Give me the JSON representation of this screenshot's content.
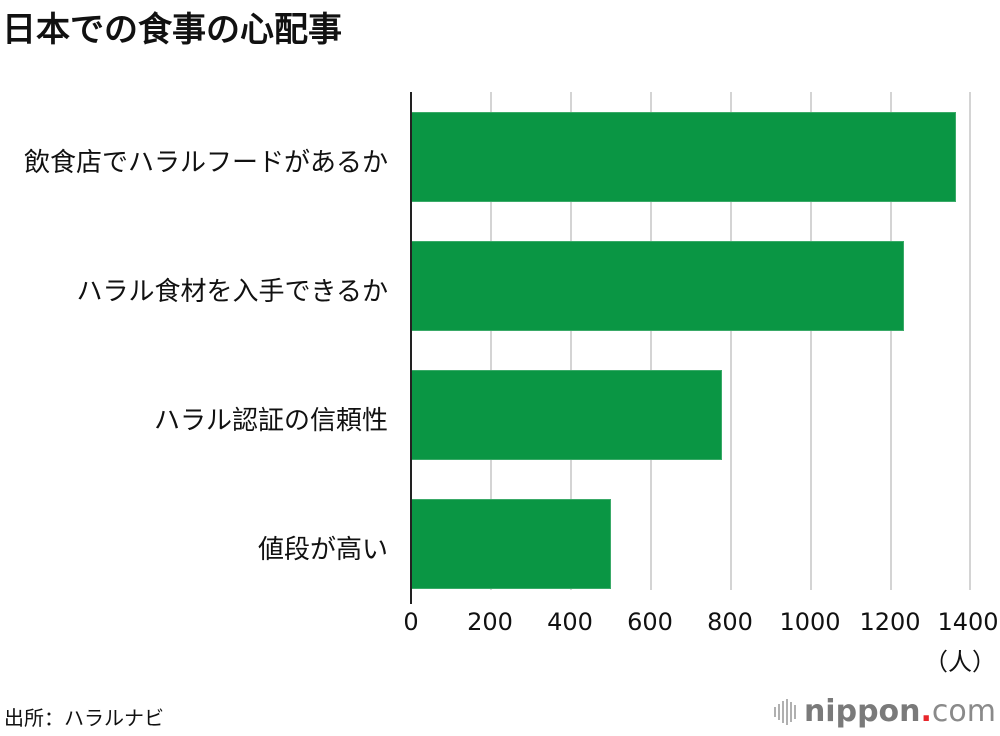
{
  "title": "日本での食事の心配事",
  "source": "出所：ハラルナビ",
  "logo": {
    "name": "nippon",
    "dot": ".",
    "tld": "com"
  },
  "colors": {
    "bar": "#0a9644",
    "grid": "#d4d4d4",
    "axis": "#222222",
    "logo_dot": "#e8262b"
  },
  "chart_data": {
    "type": "bar",
    "orientation": "horizontal",
    "title": "日本での食事の心配事",
    "categories": [
      "飲食店でハラルフードがあるか",
      "ハラル食材を入手できるか",
      "ハラル認証の信頼性",
      "値段が高い"
    ],
    "values": [
      1362,
      1232,
      777,
      500
    ],
    "xlabel": "（人）",
    "ylabel": "",
    "xlim": [
      0,
      1400
    ],
    "xticks": [
      "0",
      "200",
      "400",
      "600",
      "800",
      "1000",
      "1200",
      "1400"
    ],
    "grid": true,
    "legend": null,
    "source": "出所：ハラルナビ"
  },
  "unit_label": "（人）"
}
